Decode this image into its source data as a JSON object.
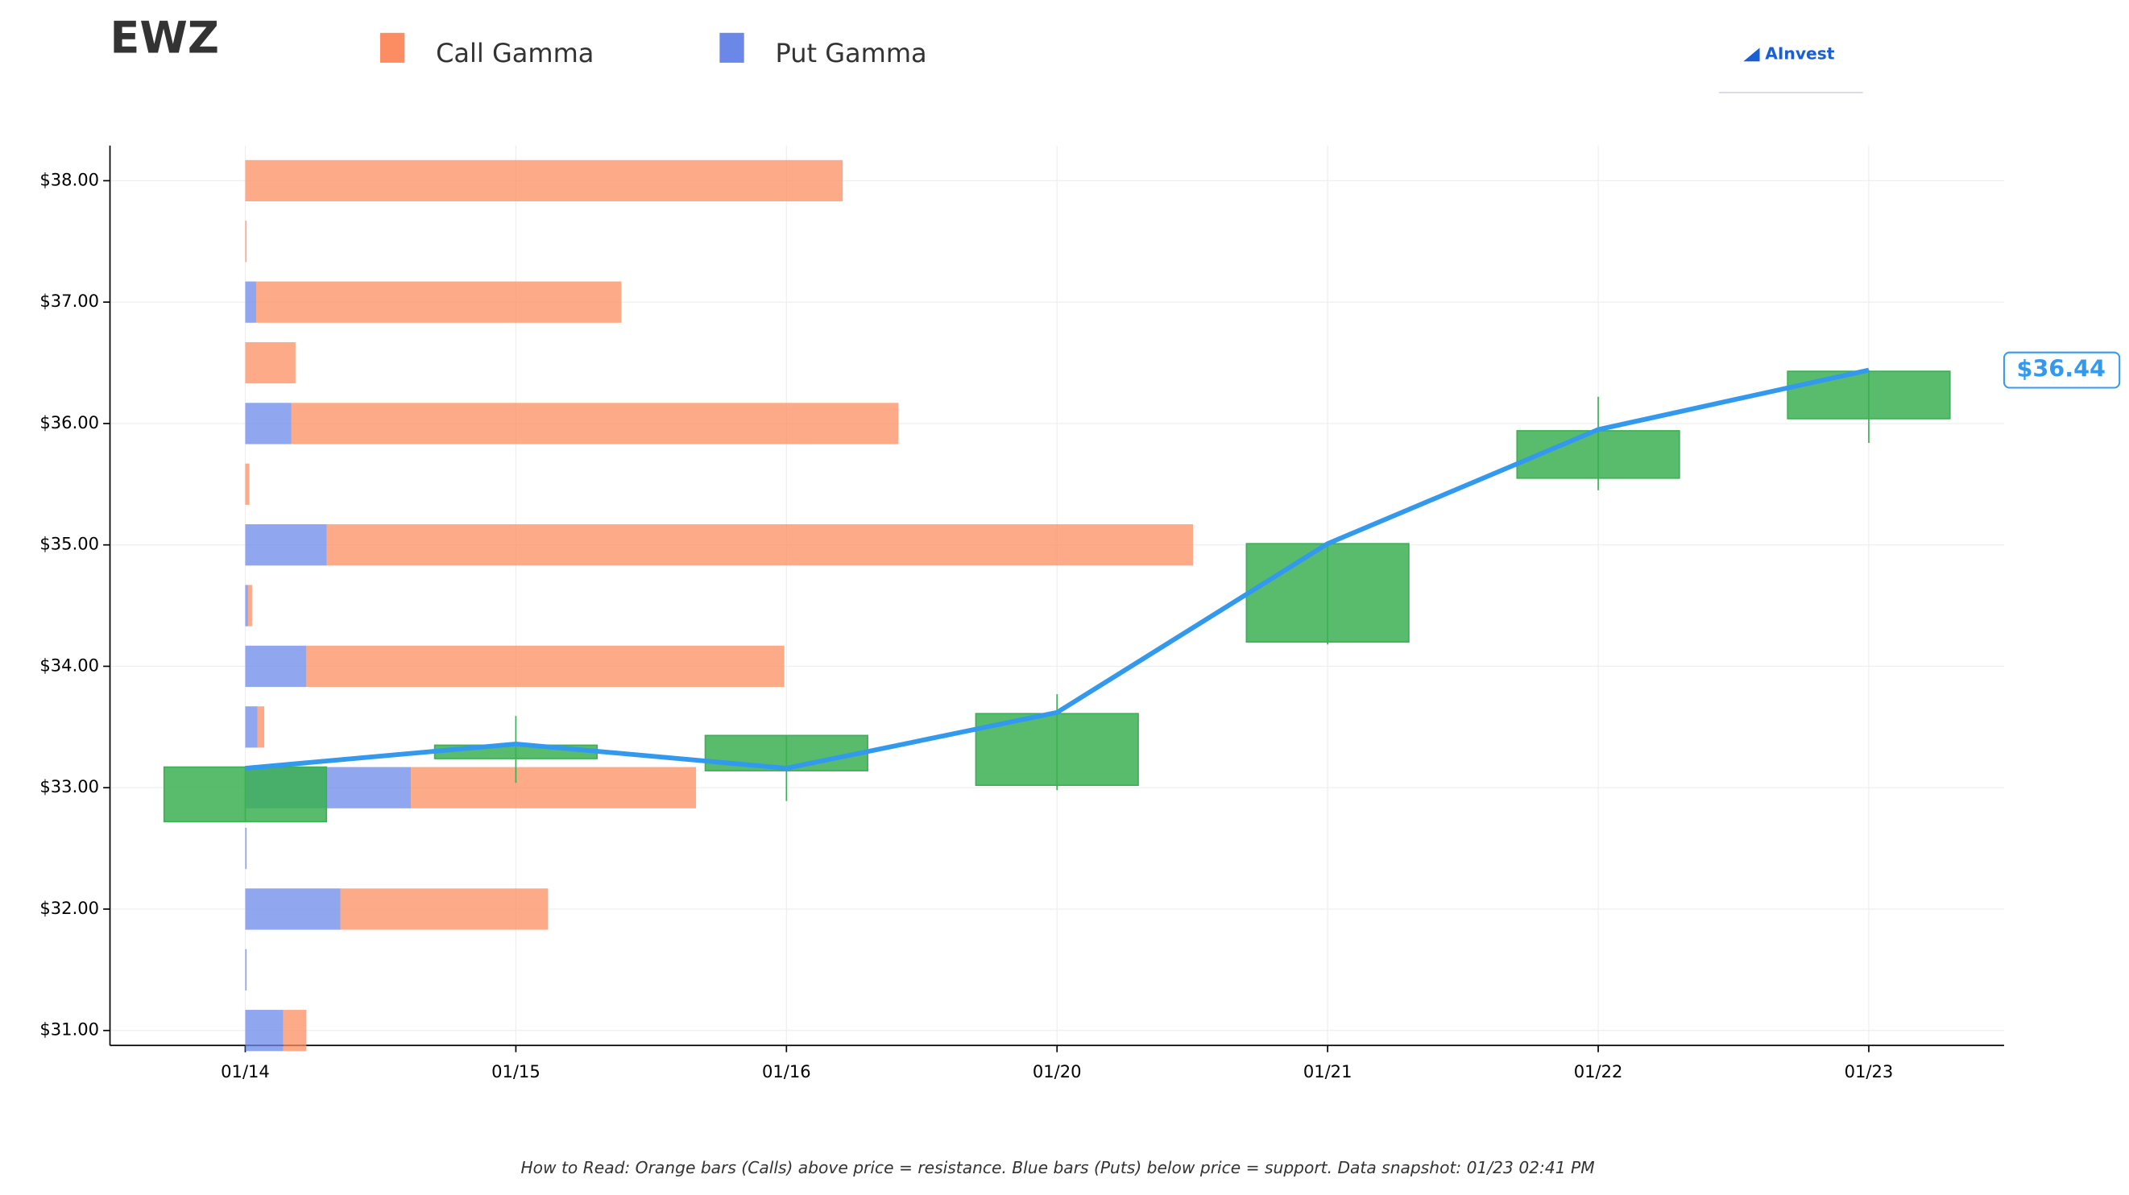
{
  "chart_data": {
    "type": "candlestick",
    "title": "EWZ",
    "footnote": "How to Read: Orange bars (Calls) above price = resistance. Blue bars (Puts) below price = support. Data snapshot: 01/23 02:41 PM",
    "brand": "AInvest",
    "categories": [
      "01/14",
      "01/15",
      "01/16",
      "01/20",
      "01/21",
      "01/22",
      "01/23"
    ],
    "open": [
      32.72,
      33.24,
      33.14,
      33.02,
      34.2,
      35.55,
      36.04
    ],
    "high": [
      33.17,
      33.59,
      33.43,
      33.77,
      35.01,
      36.22,
      36.44
    ],
    "low": [
      32.72,
      33.04,
      32.89,
      32.98,
      34.18,
      35.45,
      35.84
    ],
    "close": [
      33.17,
      33.35,
      33.43,
      33.61,
      35.01,
      35.94,
      36.43
    ],
    "candle_color": "#3cb054",
    "line": {
      "values": [
        33.16,
        33.36,
        33.16,
        33.62,
        35.01,
        35.95,
        36.44
      ],
      "value_labels": [
        null,
        null,
        null,
        null,
        null,
        null,
        "$36.44"
      ],
      "color": "#3399ee"
    },
    "gamma": {
      "levels": [
        31,
        31.5,
        32,
        32.5,
        33,
        33.5,
        34,
        34.5,
        35,
        35.5,
        36,
        36.5,
        37,
        37.5,
        38
      ],
      "series": [
        {
          "name": "Put Gamma",
          "color": "#6b88e8",
          "values": [
            28,
            1,
            70,
            1,
            122,
            9,
            45,
            2,
            60,
            0,
            34,
            0,
            8,
            0,
            0
          ]
        },
        {
          "name": "Call Gamma",
          "color": "#fc8d62",
          "values": [
            17,
            0,
            153,
            0,
            210,
            5,
            352,
            3,
            638,
            3,
            447,
            37,
            269,
            1,
            440
          ]
        }
      ]
    },
    "xlim": [
      -0.5,
      6.5
    ],
    "ylim": [
      30.877,
      38.29
    ],
    "yticks": [
      {
        "value": 31,
        "label": "$31.00"
      },
      {
        "value": 32,
        "label": "$32.00"
      },
      {
        "value": 33,
        "label": "$33.00"
      },
      {
        "value": 34,
        "label": "$34.00"
      },
      {
        "value": 35,
        "label": "$35.00"
      },
      {
        "value": 36,
        "label": "$36.00"
      },
      {
        "value": 37,
        "label": "$37.00"
      },
      {
        "value": 38,
        "label": "$38.00"
      }
    ],
    "grid": true
  }
}
